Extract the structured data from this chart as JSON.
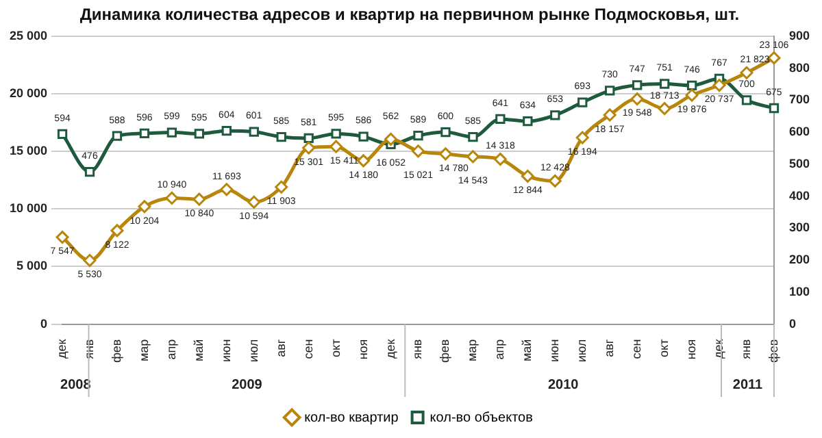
{
  "chart_data": {
    "type": "line",
    "title": "Динамика количества адресов и квартир на первичном рынке Подмосковья, шт.",
    "categories": [
      "дек",
      "янв",
      "фев",
      "мар",
      "апр",
      "май",
      "июн",
      "июл",
      "авг",
      "сен",
      "окт",
      "ноя",
      "дек",
      "янв",
      "фев",
      "мар",
      "апр",
      "май",
      "июн",
      "июл",
      "авг",
      "сен",
      "окт",
      "ноя",
      "дек",
      "янв",
      "фев"
    ],
    "series": [
      {
        "name": "кол-во квартир",
        "color": "#b8860b",
        "marker": "diamond",
        "values": [
          7547,
          5530,
          8122,
          10204,
          10940,
          10840,
          11693,
          10594,
          11903,
          15301,
          15411,
          14180,
          16052,
          15021,
          14780,
          14543,
          14318,
          12844,
          12428,
          16194,
          18157,
          19548,
          18713,
          19876,
          20737,
          21823,
          23106
        ],
        "value_labels": [
          "7 547",
          "5 530",
          "8 122",
          "10 204",
          "10 940",
          "10 840",
          "11 693",
          "10 594",
          "11 903",
          "15 301",
          "15 411",
          "14 180",
          "16 052",
          "15 021",
          "14 780",
          "14 543",
          "14 318",
          "12 844",
          "12 428",
          "16 194",
          "18 157",
          "19 548",
          "18 713",
          "19 876",
          "20 737",
          "21 823",
          "23 106"
        ]
      },
      {
        "name": "кол-во объектов",
        "color": "#1e5b3e",
        "marker": "square",
        "axis": "y2",
        "values": [
          594,
          476,
          588,
          596,
          599,
          595,
          604,
          601,
          585,
          581,
          595,
          586,
          562,
          589,
          600,
          585,
          641,
          634,
          653,
          693,
          730,
          747,
          751,
          746,
          767,
          700,
          675
        ],
        "data_labels": true
      }
    ],
    "ylim": [
      0,
      25000
    ],
    "yticks": [
      {
        "value": 0,
        "label": "0"
      },
      {
        "value": 5000,
        "label": "5 000"
      },
      {
        "value": 10000,
        "label": "10 000"
      },
      {
        "value": 15000,
        "label": "15 000"
      },
      {
        "value": 20000,
        "label": "20 000"
      },
      {
        "value": 25000,
        "label": "25 000"
      }
    ],
    "y2lim": [
      0,
      900
    ],
    "y2ticks": [
      0,
      100,
      200,
      300,
      400,
      500,
      600,
      700,
      800,
      900
    ],
    "annotations": [
      "2008",
      "2009",
      "2010",
      "2011"
    ],
    "grid": "y",
    "legend": "bottom",
    "line_style": "solid"
  }
}
